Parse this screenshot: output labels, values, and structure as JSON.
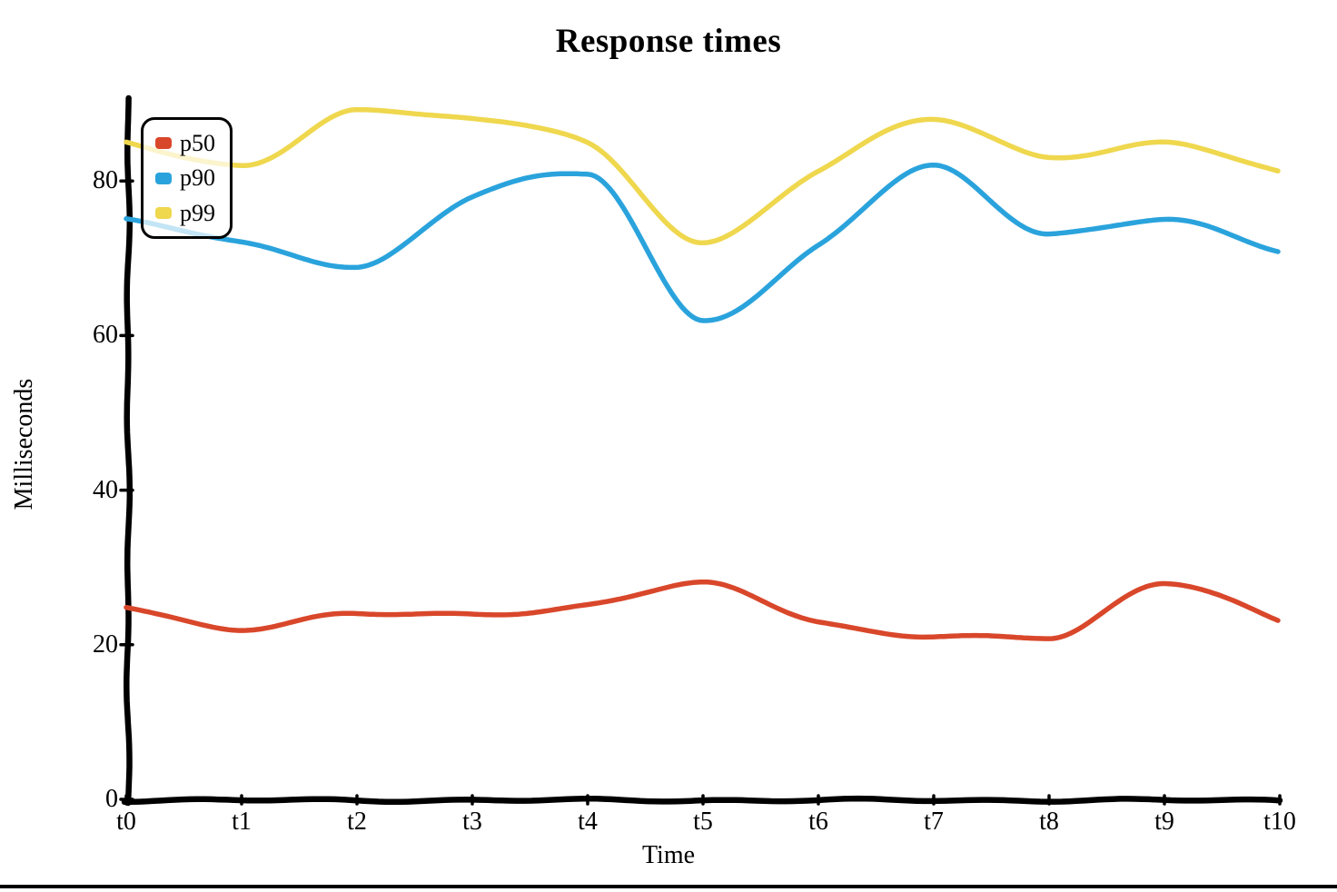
{
  "chart_data": {
    "type": "line",
    "title": "Response times",
    "xlabel": "Time",
    "ylabel": "Milliseconds",
    "x_tick_labels": [
      "t0",
      "t1",
      "t2",
      "t3",
      "t4",
      "t5",
      "t6",
      "t7",
      "t8",
      "t9",
      "t10"
    ],
    "y_tick_labels": [
      "0",
      "20",
      "40",
      "60",
      "80"
    ],
    "ylim": [
      0,
      90
    ],
    "grid": false,
    "legend_position": "top-left",
    "style": "hand-drawn",
    "axis_color": "#000000",
    "series": [
      {
        "name": "p50",
        "color": "#d9472b",
        "values": [
          25,
          22,
          24,
          24,
          25,
          28,
          23,
          21,
          21,
          28,
          23
        ]
      },
      {
        "name": "p90",
        "color": "#2aa3dc",
        "values": [
          75,
          72,
          69,
          78,
          81,
          62,
          71.5,
          82,
          73,
          75,
          71
        ]
      },
      {
        "name": "p99",
        "color": "#efd74e",
        "values": [
          85,
          82,
          89,
          88,
          85,
          72,
          81.5,
          88,
          83,
          85,
          81
        ]
      }
    ]
  }
}
